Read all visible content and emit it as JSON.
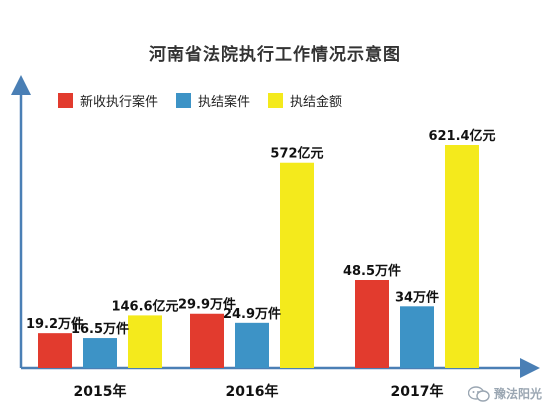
{
  "title": "河南省法院执行工作情况示意图",
  "colors": {
    "new_cases": "#e23b2e",
    "closed_cases": "#3d93c6",
    "closed_amount": "#f4ea1c",
    "axis": "#4a7fb5"
  },
  "watermark": {
    "text": "豫法阳光",
    "icon": "wechat-icon"
  },
  "chart_data": {
    "type": "bar",
    "title": "河南省法院执行工作情况示意图",
    "categories": [
      "2015年",
      "2016年",
      "2017年"
    ],
    "series": [
      {
        "name": "新收执行案件",
        "values": [
          19.2,
          29.9,
          48.5
        ],
        "labels": [
          "19.2万件",
          "29.9万件",
          "48.5万件"
        ]
      },
      {
        "name": "执结案件",
        "values": [
          16.5,
          24.9,
          34
        ],
        "labels": [
          "16.5万件",
          "24.9万件",
          "34万件"
        ]
      },
      {
        "name": "执结金额",
        "values": [
          146.6,
          572,
          621.4
        ],
        "labels": [
          "146.6亿元",
          "572亿元",
          "621.4亿元"
        ]
      }
    ],
    "xlabel": "",
    "ylabel": "",
    "legend": "top-left",
    "grid": false
  }
}
